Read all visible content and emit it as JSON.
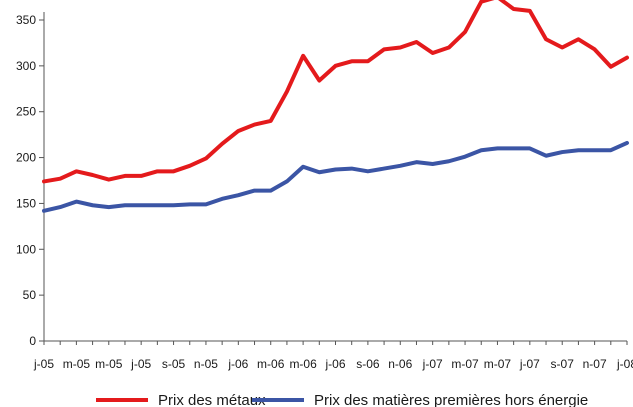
{
  "chart_data": {
    "type": "line",
    "title": "",
    "xlabel": "",
    "ylabel": "",
    "ylim": [
      0,
      350
    ],
    "yticks": [
      0,
      50,
      100,
      150,
      200,
      250,
      300,
      350
    ],
    "grid": false,
    "legend_position": "bottom",
    "x_tick_labels": [
      "j-05",
      "m-05",
      "m-05",
      "j-05",
      "s-05",
      "n-05",
      "j-06",
      "m-06",
      "m-06",
      "j-06",
      "s-06",
      "n-06",
      "j-07",
      "m-07",
      "m-07",
      "j-07",
      "s-07",
      "n-07",
      "j-08"
    ],
    "x": [
      "Jan-05",
      "Feb-05",
      "Mar-05",
      "Apr-05",
      "May-05",
      "Jun-05",
      "Jul-05",
      "Aug-05",
      "Sep-05",
      "Oct-05",
      "Nov-05",
      "Dec-05",
      "Jan-06",
      "Feb-06",
      "Mar-06",
      "Apr-06",
      "May-06",
      "Jun-06",
      "Jul-06",
      "Aug-06",
      "Sep-06",
      "Oct-06",
      "Nov-06",
      "Dec-06",
      "Jan-07",
      "Feb-07",
      "Mar-07",
      "Apr-07",
      "May-07",
      "Jun-07",
      "Jul-07",
      "Aug-07",
      "Sep-07",
      "Oct-07",
      "Nov-07",
      "Dec-07",
      "Jan-08"
    ],
    "series": [
      {
        "name": "Prix des métaux",
        "color": "#e41a1c",
        "values": [
          174,
          177,
          185,
          181,
          176,
          180,
          180,
          185,
          185,
          191,
          199,
          215,
          229,
          236,
          240,
          272,
          311,
          284,
          300,
          305,
          305,
          318,
          320,
          326,
          314,
          320,
          337,
          370,
          375,
          362,
          360,
          329,
          320,
          329,
          318,
          299,
          309
        ]
      },
      {
        "name": "Prix des matières premières hors énergie",
        "color": "#3b55a5",
        "values": [
          142,
          146,
          152,
          148,
          146,
          148,
          148,
          148,
          148,
          149,
          149,
          155,
          159,
          164,
          164,
          174,
          190,
          184,
          187,
          188,
          185,
          188,
          191,
          195,
          193,
          196,
          201,
          208,
          210,
          210,
          210,
          202,
          206,
          208,
          208,
          208,
          216
        ]
      }
    ]
  }
}
